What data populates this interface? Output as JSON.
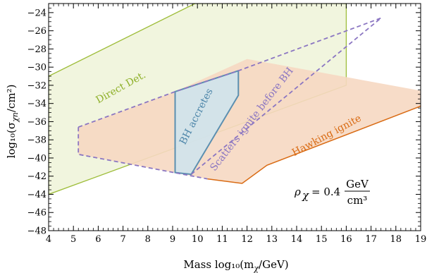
{
  "chart_data": {
    "type": "area",
    "xlabel": "Mass log₁₀(m",
    "xlabel_sub": "χ",
    "xlabel_tail": "/GeV)",
    "ylabel": "log₁₀(σ",
    "ylabel_sub": "χn",
    "ylabel_tail": "/cm²)",
    "xlim": [
      4,
      19
    ],
    "ylim": [
      -48,
      -23
    ],
    "x_ticks": [
      4,
      5,
      6,
      7,
      8,
      9,
      10,
      11,
      12,
      13,
      14,
      15,
      16,
      17,
      18,
      19
    ],
    "y_ticks": [
      -48,
      -46,
      -44,
      -42,
      -40,
      -38,
      -36,
      -34,
      -32,
      -30,
      -28,
      -26,
      -24
    ],
    "x_tick_labels": [
      "4",
      "5",
      "6",
      "7",
      "8",
      "9",
      "10",
      "11",
      "12",
      "13",
      "14",
      "15",
      "16",
      "17",
      "18",
      "19"
    ],
    "y_tick_labels": [
      "−48",
      "−46",
      "−44",
      "−42",
      "−40",
      "−38",
      "−36",
      "−34",
      "−32",
      "−30",
      "−28",
      "−26",
      "−24"
    ],
    "grid": false,
    "regions": [
      {
        "label": "Direct Det.",
        "color": "#9ebd3a",
        "fill": "#eef3d8",
        "polygon": [
          [
            4,
            -31
          ],
          [
            9.9,
            -23
          ],
          [
            16,
            -23
          ],
          [
            16,
            -32
          ],
          [
            4,
            -44
          ]
        ]
      },
      {
        "label": "Hawking ignite",
        "color": "#d96b14",
        "fill": "#f6d8c2",
        "polygon": [
          [
            5.2,
            -36.6
          ],
          [
            5.2,
            -39.6
          ],
          [
            10.4,
            -42.3
          ],
          [
            11.8,
            -42.8
          ],
          [
            12.8,
            -40.8
          ],
          [
            19,
            -34.3
          ],
          [
            19,
            -32.6
          ],
          [
            12,
            -29.1
          ],
          [
            17.4,
            -24.6
          ],
          [
            12,
            -29.1
          ],
          [
            9.1,
            -32.7
          ]
        ]
      },
      {
        "label": "BH accretes",
        "color": "#5b8fb0",
        "fill": "#cfe3ec",
        "polygon": [
          [
            9.1,
            -32.7
          ],
          [
            11.65,
            -30.4
          ],
          [
            11.65,
            -33.1
          ],
          [
            9.75,
            -41.8
          ],
          [
            9.1,
            -41.6
          ]
        ]
      }
    ],
    "hawking_boundary": [
      [
        10.4,
        -42.3
      ],
      [
        11.8,
        -42.8
      ],
      [
        12.8,
        -40.8
      ],
      [
        19,
        -34.3
      ]
    ],
    "dashed_lines": [
      {
        "label": "Scatters ignite before BH",
        "color": "#8b76c2",
        "points": [
          [
            9.75,
            -41.8
          ],
          [
            17.4,
            -24.6
          ]
        ]
      },
      {
        "label": "",
        "color": "#8b76c2",
        "points": [
          [
            5.2,
            -36.6
          ],
          [
            5.2,
            -39.6
          ],
          [
            10.4,
            -42.3
          ]
        ]
      },
      {
        "label": "",
        "color": "#8b76c2",
        "points": [
          [
            5.2,
            -36.6
          ],
          [
            9.1,
            -32.7
          ],
          [
            11.65,
            -30.4
          ],
          [
            17.4,
            -24.6
          ]
        ]
      }
    ],
    "density_label": {
      "symbol": "ρ",
      "sub": "χ",
      "equals": "= 0.4",
      "numerator": "GeV",
      "denominator": "cm³"
    }
  }
}
